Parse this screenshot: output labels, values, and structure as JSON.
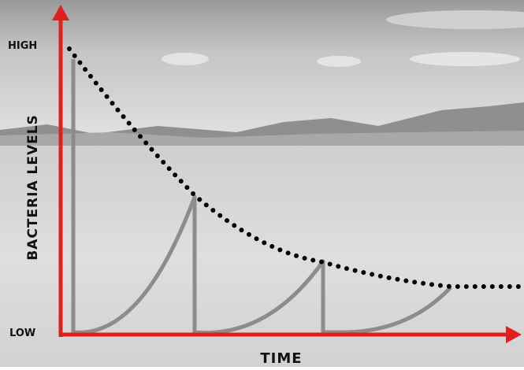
{
  "axes": {
    "y_label": "BACTERIA LEVELS",
    "y_high": "HIGH",
    "y_low": "LOW",
    "x_label": "TIME"
  }
}
